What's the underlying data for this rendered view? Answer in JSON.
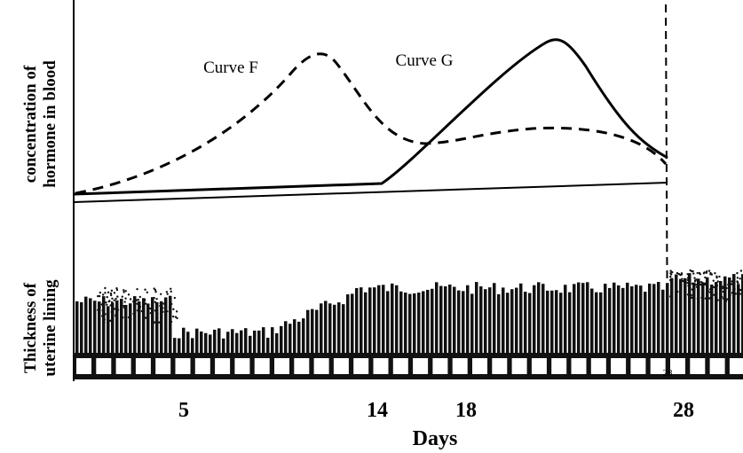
{
  "y_axis": {
    "upper": [
      "concentration of",
      "hormone in blood"
    ],
    "lower": [
      "Thickness of",
      "uterine lining"
    ]
  },
  "curves": [
    "Curve F",
    "Curve G"
  ],
  "x_axis": {
    "ticks": [
      "5",
      "14",
      "18",
      "28"
    ],
    "title": "Days"
  },
  "marker": "28"
}
